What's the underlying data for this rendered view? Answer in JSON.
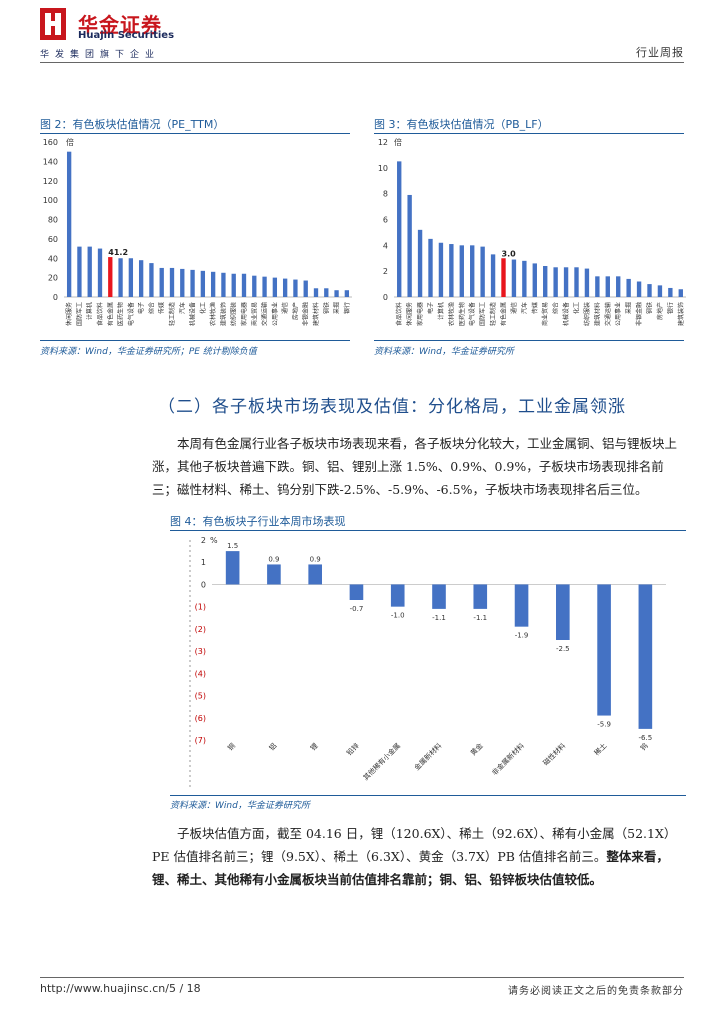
{
  "header": {
    "logo_cn": "华金证券",
    "logo_en": "Huajin Securities",
    "logo_sub": "华发集团旗下企业",
    "report_type": "行业周报"
  },
  "figures": [
    {
      "title": "图 2：有色板块估值情况（PE_TTM）",
      "source": "资料来源：Wind，华金证券研究所；PE 统计剔除负值"
    },
    {
      "title": "图 3：有色板块估值情况（PB_LF）",
      "source": "资料来源：Wind，华金证券研究所"
    },
    {
      "title": "图 4：有色板块子行业本周市场表现",
      "source": "资料来源：Wind，华金证券研究所"
    }
  ],
  "section": {
    "title": "（二）各子板块市场表现及估值：分化格局，工业金属领涨",
    "para1": "本周有色金属行业各子板块市场表现来看，各子板块分化较大，工业金属铜、铝与锂板块上涨，其他子板块普遍下跌。铜、铝、锂别上涨 1.5%、0.9%、0.9%，子板块市场表现排名前三；磁性材料、稀土、钨分别下跌-2.5%、-5.9%、-6.5%，子板块市场表现排名后三位。",
    "para2": "子板块估值方面，截至 04.16 日，锂（120.6X）、稀土（92.6X）、稀有小金属（52.1X）PE 估值排名前三；锂（9.5X）、稀土（6.3X）、黄金（3.7X）PB 估值排名前三。",
    "para2_bold": "整体来看，锂、稀土、其他稀有小金属板块当前估值排名靠前；铜、铝、铅锌板块估值较低。"
  },
  "footer": {
    "url": "http://www.huajinsc.cn/5 / 18",
    "disclaimer": "请务必阅读正文之后的免责条款部分"
  },
  "chart_data": [
    {
      "type": "bar",
      "title": "有色板块估值情况（PE_TTM）",
      "ylabel": "倍",
      "ylim": [
        0,
        160
      ],
      "yticks": [
        0,
        20,
        40,
        60,
        80,
        100,
        120,
        140,
        160
      ],
      "highlight_index": 4,
      "highlight_label": "41.2",
      "categories": [
        "休闲服务",
        "国防军工",
        "计算机",
        "食品饮料",
        "有色金属",
        "医药生物",
        "电气设备",
        "电子",
        "综合",
        "传媒",
        "轻工制造",
        "汽车",
        "机械设备",
        "化工",
        "农林牧渔",
        "建筑装饰",
        "纺织服装",
        "家用电器",
        "商业贸易",
        "交通运输",
        "公用事业",
        "通信",
        "房地产",
        "非银金融",
        "建筑材料",
        "钢铁",
        "采掘",
        "银行"
      ],
      "values": [
        150,
        52,
        52,
        50,
        41.2,
        40,
        40,
        38,
        35,
        30,
        30,
        29,
        28,
        27,
        26,
        25,
        24,
        24,
        22,
        21,
        20,
        19,
        18,
        17,
        9,
        9,
        7,
        7
      ]
    },
    {
      "type": "bar",
      "title": "有色板块估值情况（PB_LF）",
      "ylabel": "倍",
      "ylim": [
        0,
        12
      ],
      "yticks": [
        0,
        2,
        4,
        6,
        8,
        10,
        12
      ],
      "highlight_index": 10,
      "highlight_label": "3.0",
      "categories": [
        "食品饮料",
        "休闲服务",
        "家用电器",
        "电子",
        "计算机",
        "农林牧渔",
        "医药生物",
        "电气设备",
        "国防军工",
        "轻工制造",
        "有色金属",
        "通信",
        "汽车",
        "传媒",
        "商业贸易",
        "综合",
        "机械设备",
        "化工",
        "纺织服装",
        "建筑材料",
        "交通运输",
        "公用事业",
        "采掘",
        "非银金融",
        "钢铁",
        "房地产",
        "银行",
        "建筑装饰"
      ],
      "values": [
        10.5,
        7.9,
        5.2,
        4.5,
        4.2,
        4.1,
        4.0,
        4.0,
        3.9,
        3.3,
        3.0,
        2.9,
        2.8,
        2.6,
        2.4,
        2.3,
        2.3,
        2.3,
        2.2,
        1.6,
        1.6,
        1.6,
        1.4,
        1.2,
        1.0,
        0.9,
        0.7,
        0.6
      ]
    },
    {
      "type": "bar",
      "title": "有色板块子行业本周市场表现",
      "ylabel": "%",
      "ylim": [
        -7,
        2
      ],
      "yticks": [
        2,
        1,
        0,
        -1,
        -2,
        -3,
        -4,
        -5,
        -6,
        -7
      ],
      "ytick_labels": [
        "2",
        "1",
        "0",
        "(1)",
        "(2)",
        "(3)",
        "(4)",
        "(5)",
        "(6)",
        "(7)"
      ],
      "categories": [
        "铜",
        "铝",
        "锂",
        "铅锌",
        "其他稀有小金属",
        "金属新材料",
        "黄金",
        "非金属新材料",
        "磁性材料",
        "稀土",
        "钨"
      ],
      "values": [
        1.5,
        0.9,
        0.9,
        -0.7,
        -1.0,
        -1.1,
        -1.1,
        -1.9,
        -2.5,
        -5.9,
        -6.5
      ],
      "value_labels": [
        "1.5",
        "0.9",
        "0.9",
        "-0.7",
        "-1.0",
        "-1.1",
        "-1.1",
        "-1.9",
        "-2.5",
        "-5.9",
        "-6.5"
      ]
    }
  ]
}
